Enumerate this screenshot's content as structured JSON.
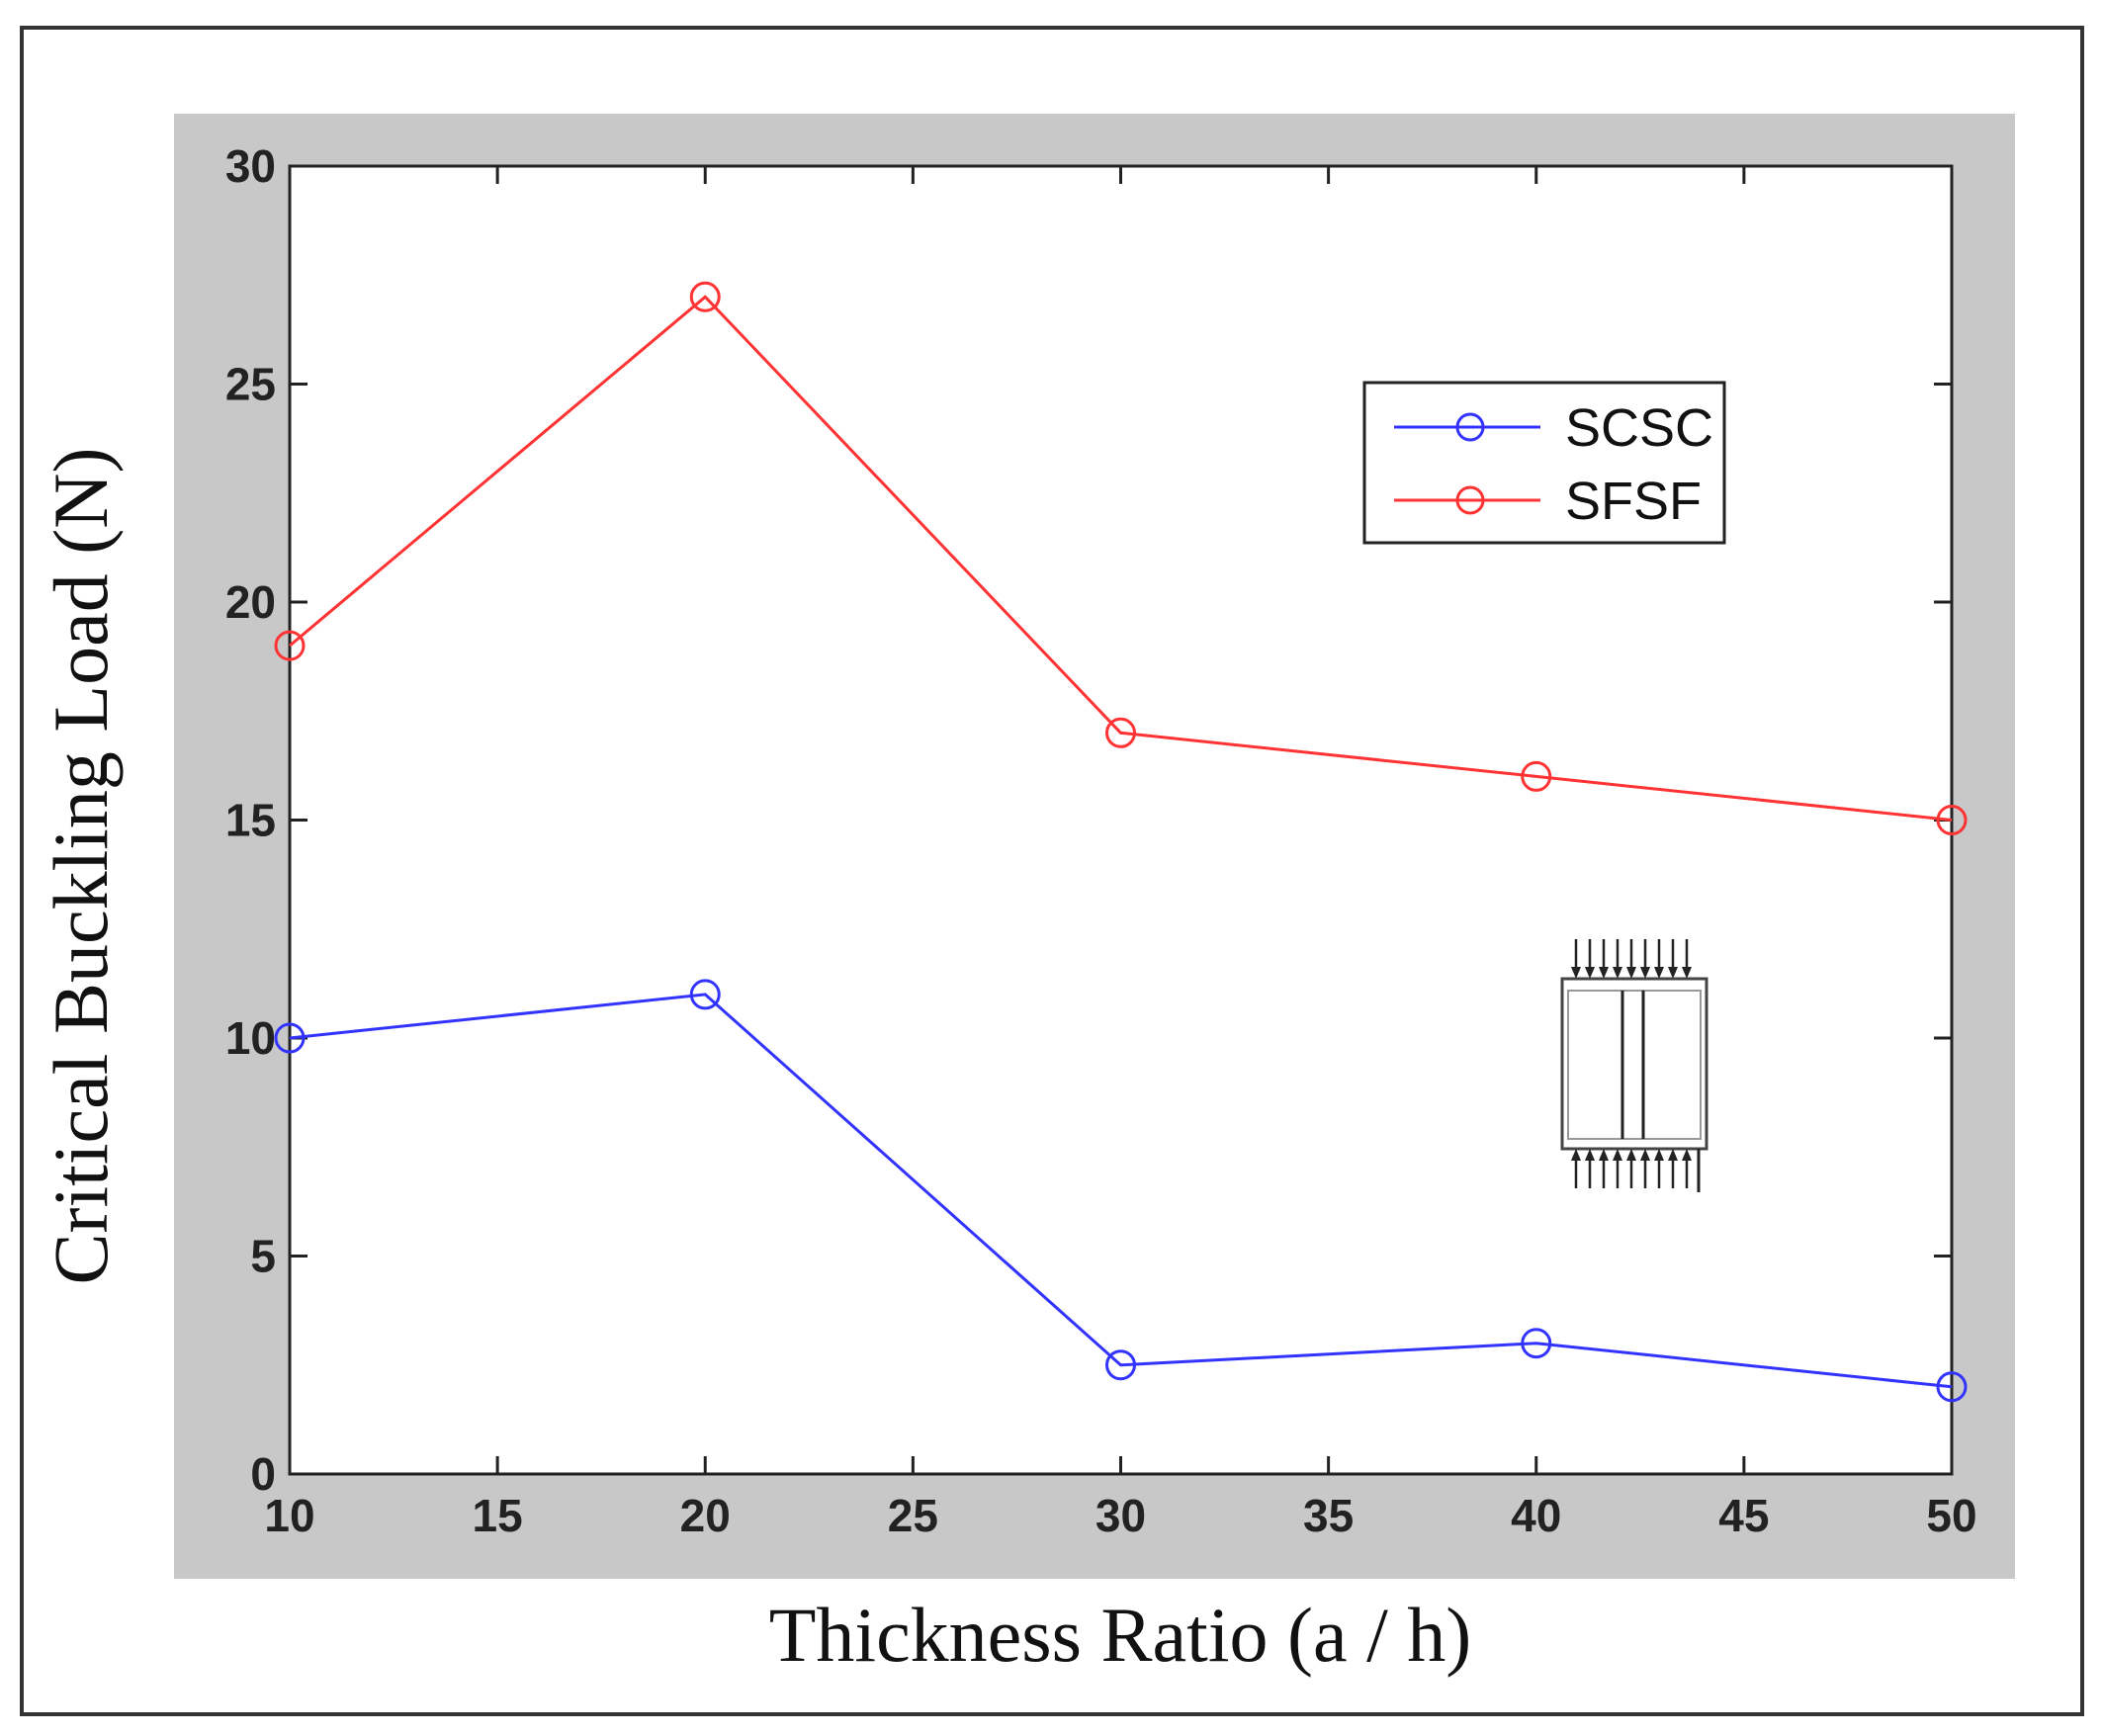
{
  "chart_data": {
    "type": "line",
    "title": "",
    "xlabel": "Thickness Ratio (a / h)",
    "ylabel": "Critical Buckling Load (N)",
    "xlim": [
      10,
      50
    ],
    "ylim": [
      0,
      30
    ],
    "xticks": [
      10,
      15,
      20,
      25,
      30,
      35,
      40,
      45,
      50
    ],
    "yticks": [
      0,
      5,
      10,
      15,
      20,
      25,
      30
    ],
    "grid": false,
    "legend_position": "top-right",
    "marker": "circle",
    "x": [
      10,
      20,
      30,
      40,
      50
    ],
    "series": [
      {
        "name": "SCSC",
        "color": "#3333ff",
        "values": [
          10,
          11,
          2.5,
          3,
          2
        ]
      },
      {
        "name": "SFSF",
        "color": "#ff3333",
        "values": [
          19,
          27,
          17,
          16,
          15
        ]
      }
    ],
    "inset_icon": "plate-compression-diagram-icon"
  }
}
